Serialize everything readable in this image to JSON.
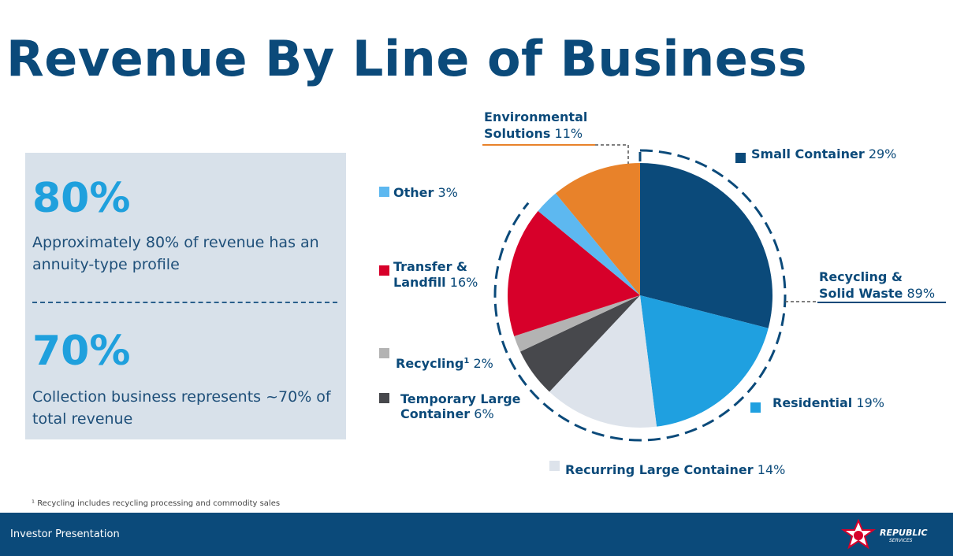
{
  "title": "Revenue By Line of Business",
  "stats": [
    {
      "value": "80%",
      "text": "Approximately 80% of revenue has an annuity-type profile"
    },
    {
      "value": "70%",
      "text": "Collection business represents ~70% of total revenue"
    }
  ],
  "footnote": "¹ Recycling includes recycling processing and commodity sales",
  "footer": {
    "label": "Investor Presentation"
  },
  "logo": {
    "text": "REPUBLIC",
    "sub": "SERVICES",
    "icon": "republic-star-icon"
  },
  "chart_data": {
    "type": "pie",
    "start_angle": "12 o'clock, clockwise",
    "slices": [
      {
        "name": "Small Container",
        "value": 29,
        "label": "29%",
        "color": "#0b4a7a"
      },
      {
        "name": "Residential",
        "value": 19,
        "label": "19%",
        "color": "#1fa0e0"
      },
      {
        "name": "Recurring Large Container",
        "value": 14,
        "label": "14%",
        "color": "#dde3eb"
      },
      {
        "name": "Temporary Large Container",
        "value": 6,
        "label": "6%",
        "color": "#47484c"
      },
      {
        "name": "Recycling¹",
        "value": 2,
        "label": "2%",
        "color": "#b3b3b3"
      },
      {
        "name": "Transfer & Landfill",
        "value": 16,
        "label": "16%",
        "color": "#d7002a"
      },
      {
        "name": "Other",
        "value": 3,
        "label": "3%",
        "color": "#5db8f0"
      },
      {
        "name": "Environmental Solutions",
        "value": 11,
        "label": "11%",
        "color": "#e8822a"
      }
    ],
    "groups": [
      {
        "name": "Recycling & Solid Waste",
        "value": 89,
        "label": "89%"
      }
    ]
  },
  "legend_labels": {
    "small_container": {
      "name": "Small Container",
      "pct": "29%"
    },
    "residential": {
      "name": "Residential",
      "pct": "19%"
    },
    "recurring": {
      "name": "Recurring Large Container",
      "pct": "14%"
    },
    "temporary_1": "Temporary Large",
    "temporary_2": "Container",
    "temporary_pct": "6%",
    "recycling_name": "Recycling",
    "recycling_sup": "1",
    "recycling_pct": "2%",
    "transfer_1": "Transfer &",
    "transfer_2": "Landfill",
    "transfer_pct": "16%",
    "other": {
      "name": "Other",
      "pct": "3%"
    },
    "env_1": "Environmental",
    "env_2": "Solutions",
    "env_pct": "11%",
    "rsw_1": "Recycling &",
    "rsw_2": "Solid Waste",
    "rsw_pct": "89%"
  }
}
